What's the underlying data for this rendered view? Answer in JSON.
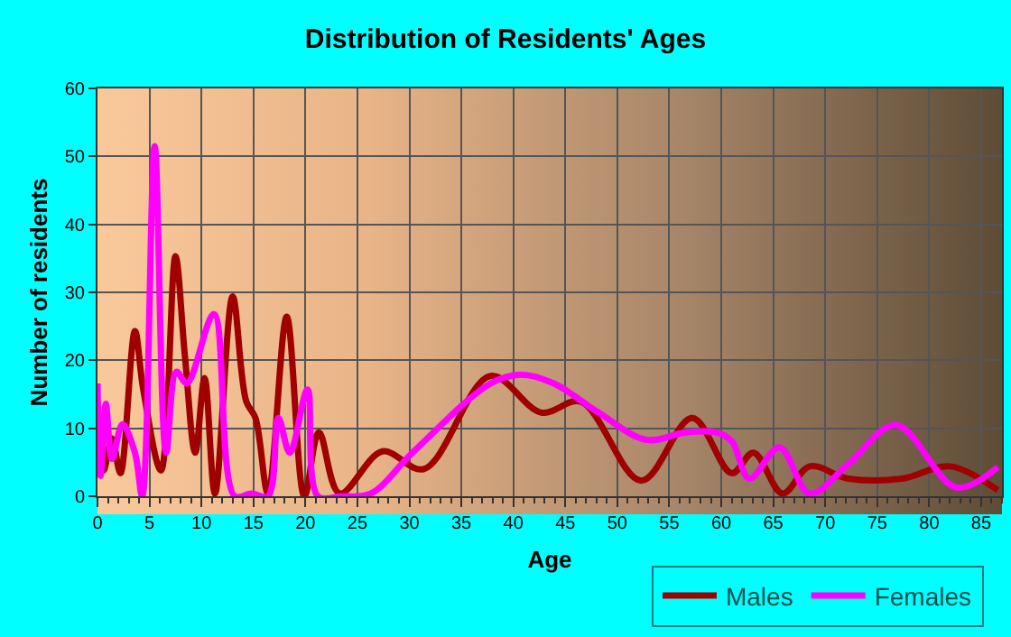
{
  "chart_data": {
    "type": "line",
    "title": "Distribution of Residents' Ages",
    "xlabel": "Age",
    "ylabel": "Number of residents",
    "xlim": [
      0,
      87
    ],
    "xticks": [
      0,
      5,
      10,
      15,
      20,
      25,
      30,
      35,
      40,
      45,
      50,
      55,
      60,
      65,
      70,
      75,
      80,
      85
    ],
    "ylim": [
      0,
      60
    ],
    "yticks": [
      0,
      10,
      20,
      30,
      40,
      50,
      60
    ],
    "grid": true,
    "legend": "bottom right",
    "marker": "none",
    "line_style": "solid",
    "series": [
      {
        "name": "Males",
        "color": "#a00000",
        "x": [
          0,
          0.3,
          0.6,
          1.4,
          2.2,
          3.6,
          4.4,
          6.1,
          7.5,
          8.4,
          9.4,
          10.3,
          11.3,
          13.0,
          14.3,
          15.2,
          16.4,
          18.2,
          19.9,
          21.3,
          23.3,
          27.4,
          31.4,
          37.8,
          42.7,
          46.5,
          52.3,
          57.2,
          61,
          63.1,
          65.9,
          68.5,
          72.2,
          77.4,
          82,
          86.6
        ],
        "values": [
          6.4,
          8,
          3.8,
          8.5,
          3.4,
          24.3,
          15.7,
          3.8,
          35.3,
          20.8,
          6.4,
          17.4,
          0.4,
          29.4,
          14,
          11.5,
          0.4,
          26.4,
          0,
          9.4,
          0.4,
          6.6,
          4,
          17.7,
          12.3,
          13.9,
          2.3,
          11.5,
          3.4,
          6.4,
          0.4,
          4.4,
          2.6,
          2.6,
          4.4,
          0.9
        ]
      },
      {
        "name": "Females",
        "color": "#ff00ff",
        "x": [
          0,
          0.3,
          0.8,
          1.4,
          2.4,
          3.6,
          4.3,
          5.5,
          6.6,
          7.6,
          8.6,
          11.2,
          13.2,
          14.8,
          16.4,
          17.4,
          18.5,
          20.2,
          21.2,
          23.4,
          26.3,
          30.3,
          37.8,
          40.7,
          43.9,
          48.2,
          52.8,
          56.6,
          59.5,
          61,
          62.7,
          65.6,
          68.5,
          72.2,
          76.8,
          82.6,
          86.6
        ],
        "values": [
          16.6,
          3,
          13.6,
          5.5,
          10.6,
          6.4,
          0,
          51.5,
          6.4,
          18.3,
          16.6,
          26.8,
          0,
          0.4,
          0,
          11.5,
          6.4,
          15.7,
          0,
          0,
          0.4,
          6.4,
          16.6,
          17.9,
          16.6,
          12.3,
          8.3,
          9.4,
          9.4,
          8.1,
          2.6,
          7.2,
          0.4,
          4.7,
          10.5,
          1.3,
          4.3
        ]
      }
    ]
  }
}
